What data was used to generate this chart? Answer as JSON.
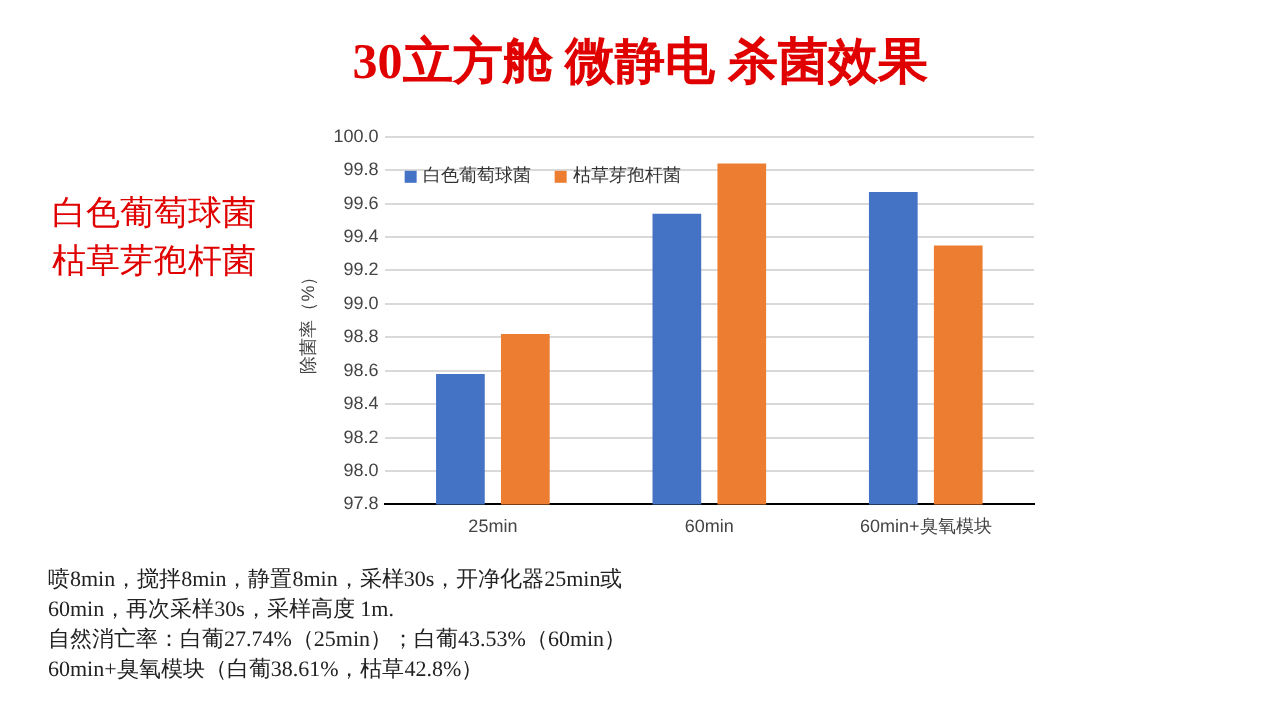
{
  "chart_data": {
    "type": "bar",
    "title": "30立方舱 微静电 杀菌效果",
    "ylabel": "除菌率（%）",
    "categories": [
      "25min",
      "60min",
      "60min+臭氧模块"
    ],
    "series": [
      {
        "name": "白色葡萄球菌",
        "color": "#4472c4",
        "values": [
          98.58,
          99.54,
          99.67
        ]
      },
      {
        "name": "枯草芽孢杆菌",
        "color": "#ed7d31",
        "values": [
          98.82,
          99.84,
          99.35
        ]
      }
    ],
    "ylim": [
      97.8,
      100.0
    ],
    "yticks": [
      {
        "value": 97.8,
        "label": "97.8"
      },
      {
        "value": 98.0,
        "label": "98.0"
      },
      {
        "value": 98.2,
        "label": "98.2"
      },
      {
        "value": 98.4,
        "label": "98.4"
      },
      {
        "value": 98.6,
        "label": "98.6"
      },
      {
        "value": 98.8,
        "label": "98.8"
      },
      {
        "value": 99.0,
        "label": "99.0"
      },
      {
        "value": 99.2,
        "label": "99.2"
      },
      {
        "value": 99.4,
        "label": "99.4"
      },
      {
        "value": 99.6,
        "label": "99.6"
      },
      {
        "value": 99.8,
        "label": "99.8"
      },
      {
        "value": 100.0,
        "label": "100.0"
      }
    ],
    "grid": "y",
    "legend": "top left",
    "annotations": [
      "白色葡萄球菌",
      "枯草芽孢杆菌",
      "喷8min，搅拌8min，静置8min，采样30s，开净化器25min或",
      "60min，再次采样30s，采样高度 1m.",
      "自然消亡率：白葡27.74%（25min）；白葡43.53%（60min）",
      "60min+臭氧模块（白葡38.61%，枯草42.8%）"
    ]
  }
}
